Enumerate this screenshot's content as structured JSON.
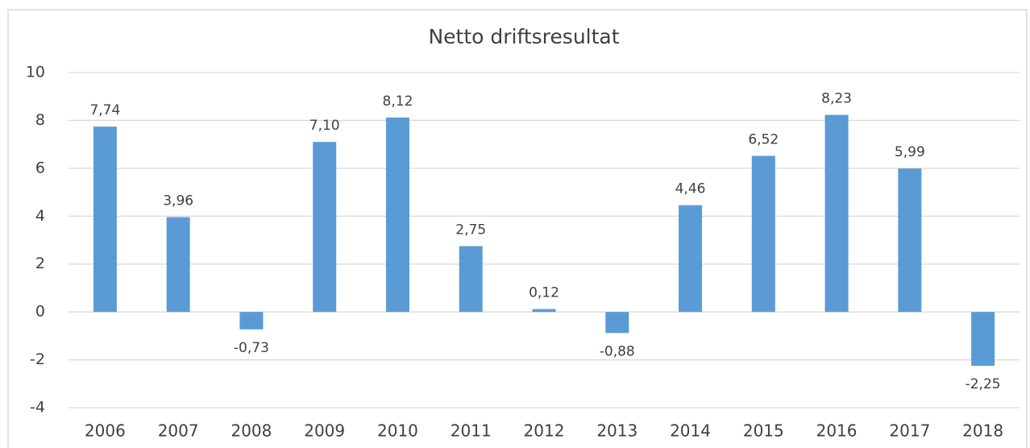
{
  "chart_data": {
    "type": "bar",
    "title": "Netto driftsresultat",
    "categories": [
      "2006",
      "2007",
      "2008",
      "2009",
      "2010",
      "2011",
      "2012",
      "2013",
      "2014",
      "2015",
      "2016",
      "2017",
      "2018"
    ],
    "values": [
      7.74,
      3.96,
      -0.73,
      7.1,
      8.12,
      2.75,
      0.12,
      -0.88,
      4.46,
      6.52,
      8.23,
      5.99,
      -2.25
    ],
    "value_labels": [
      "7,74",
      "3,96",
      "-0,73",
      "7,10",
      "8,12",
      "2,75",
      "0,12",
      "-0,88",
      "4,46",
      "6,52",
      "8,23",
      "5,99",
      "-2,25"
    ],
    "color": "#5b9bd5",
    "ylim": [
      -4,
      10
    ],
    "yticks": [
      -4,
      -2,
      0,
      2,
      4,
      6,
      8,
      10
    ],
    "grid": true
  }
}
